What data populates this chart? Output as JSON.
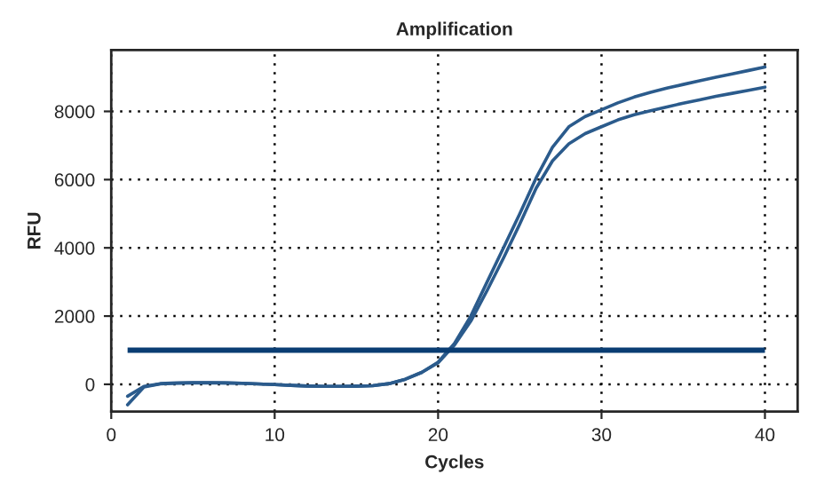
{
  "chart_data": {
    "type": "line",
    "title": "Amplification",
    "xlabel": "Cycles",
    "ylabel": "RFU",
    "x": [
      1,
      2,
      3,
      4,
      5,
      6,
      7,
      8,
      9,
      10,
      11,
      12,
      13,
      14,
      15,
      16,
      17,
      18,
      19,
      20,
      21,
      22,
      23,
      24,
      25,
      26,
      27,
      28,
      29,
      30,
      31,
      32,
      33,
      34,
      35,
      36,
      37,
      38,
      39,
      40
    ],
    "series": [
      {
        "color": "#2b5b8c",
        "values": [
          -350,
          -60,
          20,
          40,
          50,
          50,
          40,
          30,
          10,
          -10,
          -30,
          -50,
          -60,
          -60,
          -60,
          -40,
          20,
          150,
          350,
          650,
          1200,
          2000,
          3000,
          4000,
          5000,
          6050,
          6950,
          7550,
          7850,
          8050,
          8250,
          8420,
          8560,
          8680,
          8790,
          8900,
          9000,
          9100,
          9200,
          9300
        ]
      },
      {
        "color": "#2b5b8c",
        "values": [
          -600,
          -80,
          10,
          30,
          40,
          40,
          40,
          30,
          10,
          -10,
          -30,
          -50,
          -60,
          -60,
          -50,
          -40,
          20,
          150,
          350,
          630,
          1150,
          1850,
          2750,
          3700,
          4700,
          5750,
          6550,
          7050,
          7350,
          7550,
          7750,
          7900,
          8020,
          8130,
          8240,
          8340,
          8440,
          8530,
          8620,
          8710
        ]
      }
    ],
    "ref_lines": [
      {
        "axis": "y",
        "value": 1000,
        "color": "#0a3d73"
      }
    ],
    "xlim": [
      0,
      42
    ],
    "ylim": [
      -800,
      9800
    ],
    "xticks": [
      0,
      10,
      20,
      30,
      40
    ],
    "yticks": [
      0,
      2000,
      4000,
      6000,
      8000
    ],
    "grid": true,
    "legend": false,
    "marker": "none",
    "line_style": "solid"
  }
}
